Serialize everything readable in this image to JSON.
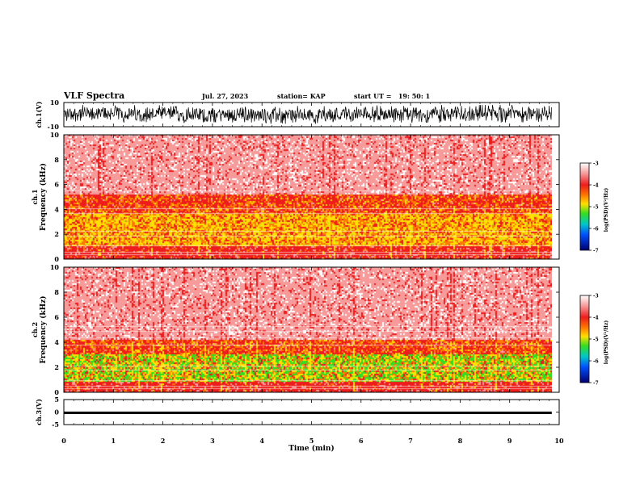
{
  "header": {
    "title": "VLF Spectra",
    "date": "Jul. 27, 2023",
    "station": "station= KAP",
    "start": "start UT =   19: 50: 1"
  },
  "chart_data": [
    {
      "type": "line",
      "panel": "ch1-waveform",
      "ylabel": "ch.1(V)",
      "ylim": [
        -10,
        10
      ],
      "yticks": [
        "10",
        "-10"
      ],
      "xlim": [
        0,
        10
      ],
      "series": [
        {
          "values_range": [
            -8,
            8
          ],
          "color": "#000000"
        }
      ]
    },
    {
      "type": "heatmap",
      "panel": "ch1-spectrogram",
      "ylabel": "ch.1 Frequency (kHz)",
      "ylim": [
        0,
        10
      ],
      "yticks": [
        "0",
        "2",
        "4",
        "6",
        "8",
        "10"
      ],
      "xlim": [
        0,
        9.85
      ],
      "bands": [
        {
          "from_khz": 0.0,
          "to_khz": 1.1,
          "level": "red"
        },
        {
          "from_khz": 1.1,
          "to_khz": 3.6,
          "level": "yellow"
        },
        {
          "from_khz": 3.6,
          "to_khz": 5.2,
          "level": "red-orange"
        },
        {
          "from_khz": 5.2,
          "to_khz": 10.0,
          "level": "light-red"
        }
      ],
      "colorbar": {
        "label": "log(PSD)(V²/Hz)",
        "range": [
          -7,
          -3
        ],
        "ticks": [
          "-3",
          "-4",
          "-5",
          "-6",
          "-7"
        ]
      }
    },
    {
      "type": "heatmap",
      "panel": "ch2-spectrogram",
      "ylabel": "ch.2 Frequency (kHz)",
      "ylim": [
        0,
        10
      ],
      "yticks": [
        "0",
        "2",
        "4",
        "6",
        "8",
        "10"
      ],
      "xlim": [
        0,
        9.85
      ],
      "bands": [
        {
          "from_khz": 0.0,
          "to_khz": 0.8,
          "level": "red"
        },
        {
          "from_khz": 0.8,
          "to_khz": 3.0,
          "level": "green-yellow"
        },
        {
          "from_khz": 3.0,
          "to_khz": 4.2,
          "level": "red-orange"
        },
        {
          "from_khz": 4.2,
          "to_khz": 10.0,
          "level": "light-red"
        }
      ],
      "colorbar": {
        "label": "log(PSD)(V²/Hz)",
        "range": [
          -7,
          -3
        ],
        "ticks": [
          "-3",
          "-4",
          "-5",
          "-6",
          "-7"
        ]
      }
    },
    {
      "type": "line",
      "panel": "ch3-waveform",
      "ylabel": "ch.3(V)",
      "ylim": [
        -5,
        5
      ],
      "yticks": [
        "5",
        "0",
        "-5"
      ],
      "xlim": [
        0,
        10
      ],
      "series": [
        {
          "values_range": [
            -0.8,
            0.2
          ],
          "color": "#000000"
        }
      ]
    }
  ],
  "xaxis": {
    "label": "Time (min)",
    "ticks": [
      "0",
      "1",
      "2",
      "3",
      "4",
      "5",
      "6",
      "7",
      "8",
      "9",
      "10"
    ],
    "range": [
      0,
      10
    ]
  },
  "colors": {
    "light_red": "#f79a9a",
    "red": "#ee1c1c",
    "orange": "#ff7a00",
    "yellow": "#ffe000",
    "green": "#33dd22"
  }
}
